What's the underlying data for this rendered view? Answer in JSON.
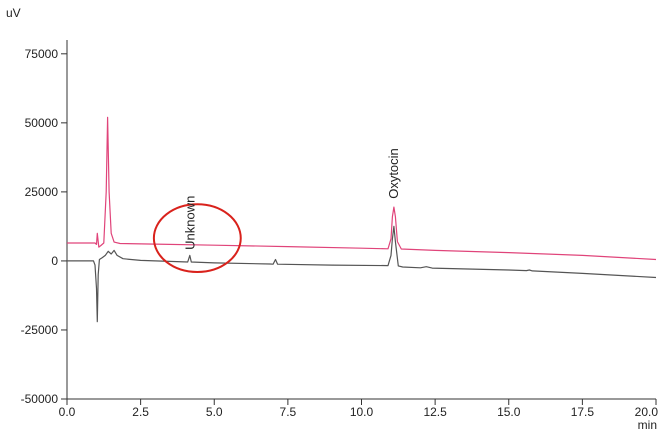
{
  "chart_data": {
    "type": "line",
    "ylabel": "uV",
    "xlabel": "min",
    "xlim": [
      0.0,
      20.0
    ],
    "ylim": [
      -50000,
      80000
    ],
    "x_ticks": [
      "0.0",
      "2.5",
      "5.0",
      "7.5",
      "10.0",
      "12.5",
      "15.0",
      "17.5",
      "20.0"
    ],
    "y_ticks": [
      "75000",
      "50000",
      "25000",
      "0",
      "-25000",
      "-50000"
    ],
    "grid": false,
    "series": [
      {
        "color": "#e0447a",
        "points": [
          [
            0.0,
            6500
          ],
          [
            0.95,
            6500
          ],
          [
            1.0,
            6000
          ],
          [
            1.03,
            10000
          ],
          [
            1.08,
            5000
          ],
          [
            1.15,
            5600
          ],
          [
            1.25,
            6500
          ],
          [
            1.33,
            25000
          ],
          [
            1.38,
            52000
          ],
          [
            1.43,
            25000
          ],
          [
            1.5,
            10000
          ],
          [
            1.6,
            6800
          ],
          [
            1.8,
            6300
          ],
          [
            3.0,
            6100
          ],
          [
            5.0,
            5700
          ],
          [
            7.5,
            5200
          ],
          [
            10.0,
            4600
          ],
          [
            10.9,
            4400
          ],
          [
            11.0,
            8000
          ],
          [
            11.05,
            16000
          ],
          [
            11.1,
            19500
          ],
          [
            11.15,
            16000
          ],
          [
            11.22,
            7000
          ],
          [
            11.35,
            4300
          ],
          [
            12.5,
            3800
          ],
          [
            15.0,
            3000
          ],
          [
            17.5,
            2000
          ],
          [
            20.0,
            500
          ]
        ]
      },
      {
        "color": "#555555",
        "points": [
          [
            0.0,
            0
          ],
          [
            0.9,
            0
          ],
          [
            0.95,
            -1500
          ],
          [
            1.0,
            -10000
          ],
          [
            1.03,
            -22000
          ],
          [
            1.06,
            -5000
          ],
          [
            1.1,
            500
          ],
          [
            1.2,
            1200
          ],
          [
            1.3,
            2000
          ],
          [
            1.4,
            3500
          ],
          [
            1.5,
            2500
          ],
          [
            1.6,
            3800
          ],
          [
            1.7,
            2000
          ],
          [
            1.9,
            800
          ],
          [
            2.5,
            200
          ],
          [
            4.1,
            -400
          ],
          [
            4.17,
            2000
          ],
          [
            4.22,
            -400
          ],
          [
            5.0,
            -700
          ],
          [
            6.9,
            -1100
          ],
          [
            7.0,
            -1200
          ],
          [
            7.08,
            500
          ],
          [
            7.15,
            -1200
          ],
          [
            9.0,
            -1500
          ],
          [
            10.9,
            -1700
          ],
          [
            11.0,
            2000
          ],
          [
            11.05,
            8000
          ],
          [
            11.1,
            12500
          ],
          [
            11.15,
            7000
          ],
          [
            11.25,
            -1800
          ],
          [
            11.4,
            -2200
          ],
          [
            12.0,
            -2500
          ],
          [
            12.2,
            -2100
          ],
          [
            12.4,
            -2600
          ],
          [
            15.0,
            -3300
          ],
          [
            15.6,
            -3500
          ],
          [
            15.7,
            -3300
          ],
          [
            15.8,
            -3600
          ],
          [
            17.5,
            -4500
          ],
          [
            20.0,
            -6000
          ]
        ]
      }
    ],
    "annotations": [
      {
        "text": "Unknown",
        "x": 4.2,
        "y": 4000
      },
      {
        "text": "Oxytocin",
        "x": 11.1,
        "y": 22500
      }
    ],
    "highlight": {
      "shape": "ellipse",
      "color": "#d9221c",
      "x_range": [
        2.95,
        5.9
      ],
      "y_range": [
        -4000,
        20500
      ]
    }
  }
}
